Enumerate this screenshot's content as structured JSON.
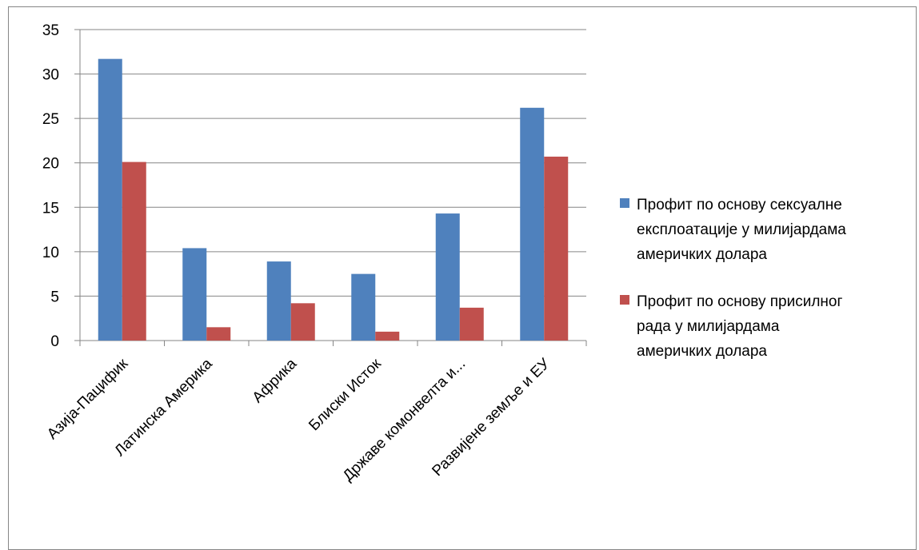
{
  "chart_data": {
    "type": "bar",
    "categories": [
      "Азија-Пацифик",
      "Латинска Америка",
      "Африка",
      "Блиски Исток",
      "Државе комонвелта и...",
      "Развијене земље и ЕУ"
    ],
    "series": [
      {
        "name": "Профит по основу сексуалне експлоатације у милијардама америчких долара",
        "name_lines": [
          "Профит по основу сексуалне",
          "експлоатације у милијардама",
          "америчких долара"
        ],
        "color": "#4F81BD",
        "values": [
          31.7,
          10.4,
          8.9,
          7.5,
          14.3,
          26.2
        ]
      },
      {
        "name": "Профит по основу присилног рада у милијардама америчких долара",
        "name_lines": [
          "Профит по основу присилног",
          "рада у милијардама",
          "америчких долара"
        ],
        "color": "#C0504D",
        "values": [
          20.1,
          1.5,
          4.2,
          1.0,
          3.7,
          20.7
        ]
      }
    ],
    "ylim": [
      0,
      35
    ],
    "yticks": [
      "0",
      "5",
      "10",
      "15",
      "20",
      "25",
      "30",
      "35"
    ],
    "grid": true,
    "legend": "right",
    "title": "",
    "xlabel": "",
    "ylabel": ""
  }
}
